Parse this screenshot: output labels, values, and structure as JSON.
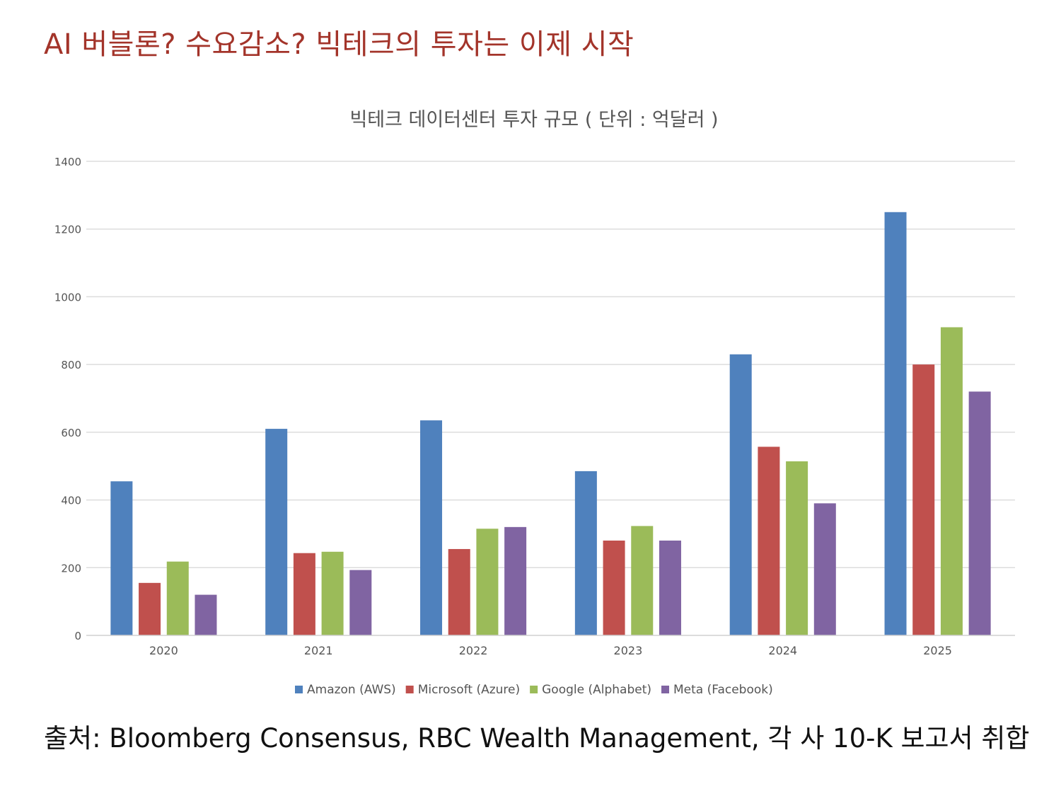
{
  "page": {
    "headline": "AI 버블론? 수요감소? 빅테크의 투자는 이제 시작",
    "source": "출처: Bloomberg Consensus, RBC Wealth Management, 각 사 10-K 보고서 취합"
  },
  "chart_data": {
    "type": "bar",
    "title": "빅테크 데이터센터 투자 규모 ( 단위 :  억달러 )",
    "xlabel": "",
    "ylabel": "",
    "categories": [
      "2020",
      "2021",
      "2022",
      "2023",
      "2024",
      "2025"
    ],
    "ylim": [
      0,
      1400
    ],
    "yticks": [
      0,
      200,
      400,
      600,
      800,
      1000,
      1200,
      1400
    ],
    "grid": true,
    "legend_position": "bottom",
    "series": [
      {
        "name": "Amazon (AWS)",
        "color": "#4f81bd",
        "values": [
          455,
          610,
          635,
          485,
          830,
          1250
        ]
      },
      {
        "name": "Microsoft (Azure)",
        "color": "#c0504d",
        "values": [
          155,
          243,
          255,
          280,
          557,
          800
        ]
      },
      {
        "name": "Google (Alphabet)",
        "color": "#9bbb59",
        "values": [
          218,
          247,
          315,
          323,
          514,
          910
        ]
      },
      {
        "name": "Meta (Facebook)",
        "color": "#8064a2",
        "values": [
          120,
          193,
          320,
          280,
          390,
          720
        ]
      }
    ]
  }
}
